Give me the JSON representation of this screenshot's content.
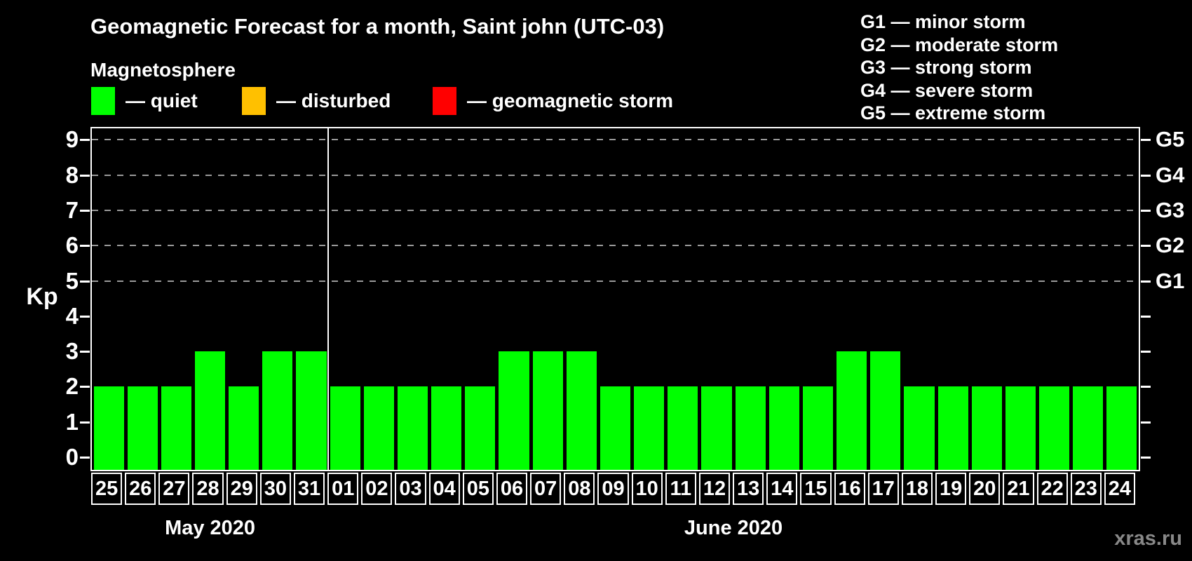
{
  "title": "Geomagnetic Forecast for a month, Saint john (UTC-03)",
  "subtitle": "Magnetosphere",
  "watermark": "xras.ru",
  "magnetosphere_legend": [
    {
      "label": "— quiet",
      "color": "#00ff00"
    },
    {
      "label": "— disturbed",
      "color": "#ffc000"
    },
    {
      "label": "— geomagnetic storm",
      "color": "#ff0000"
    }
  ],
  "storm_scale_legend": [
    "G1 — minor storm",
    "G2 — moderate storm",
    "G3 — strong storm",
    "G4 — severe storm",
    "G5 — extreme storm"
  ],
  "chart_data": {
    "type": "bar",
    "title": "Geomagnetic Forecast for a month, Saint john (UTC-03)",
    "ylabel": "Kp",
    "ylim": [
      0,
      9
    ],
    "y_ticks": [
      0,
      1,
      2,
      3,
      4,
      5,
      6,
      7,
      8,
      9
    ],
    "gridlines_kp": [
      5,
      6,
      7,
      8,
      9
    ],
    "right_axis": [
      {
        "label": "G5",
        "kp": 9
      },
      {
        "label": "G4",
        "kp": 8
      },
      {
        "label": "G3",
        "kp": 7
      },
      {
        "label": "G2",
        "kp": 6
      },
      {
        "label": "G1",
        "kp": 5
      }
    ],
    "bar_color": "#00ff00",
    "grid": true,
    "legend_position": "top",
    "months": [
      {
        "label": "May 2020",
        "days": 7
      },
      {
        "label": "June 2020",
        "days": 24
      }
    ],
    "categories": [
      "25",
      "26",
      "27",
      "28",
      "29",
      "30",
      "31",
      "01",
      "02",
      "03",
      "04",
      "05",
      "06",
      "07",
      "08",
      "09",
      "10",
      "11",
      "12",
      "13",
      "14",
      "15",
      "16",
      "17",
      "18",
      "19",
      "20",
      "21",
      "22",
      "23",
      "24"
    ],
    "values": [
      2,
      2,
      2,
      3,
      2,
      3,
      3,
      2,
      2,
      2,
      2,
      2,
      3,
      3,
      3,
      2,
      2,
      2,
      2,
      2,
      2,
      2,
      3,
      3,
      2,
      2,
      2,
      2,
      2,
      2,
      2
    ]
  },
  "colors": {
    "background": "#000000",
    "text": "#ffffff",
    "gridline": "#999999",
    "axis": "#ffffff",
    "watermark": "#888888"
  }
}
